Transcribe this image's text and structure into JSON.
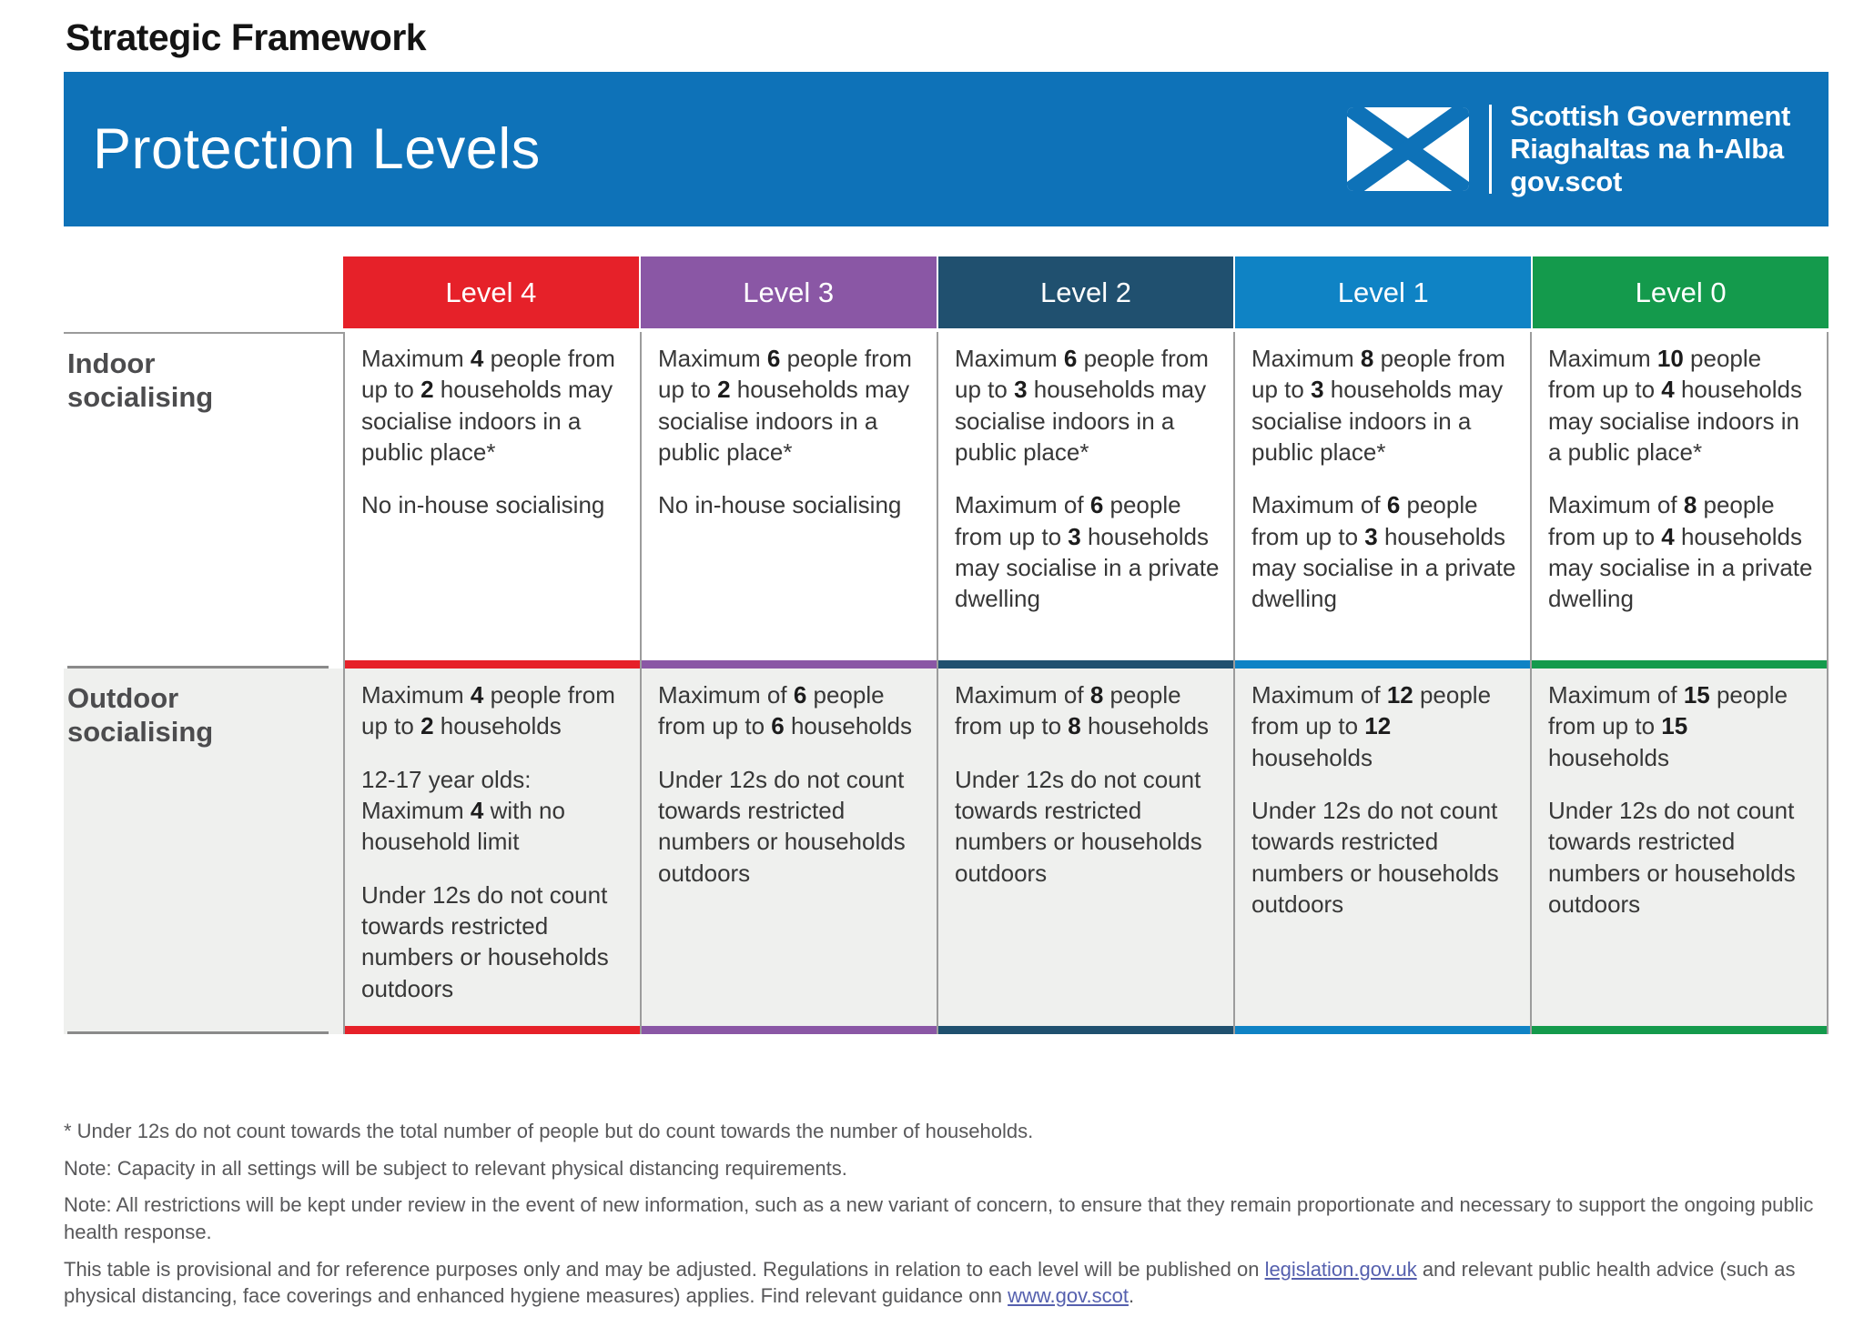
{
  "page": {
    "eyebrow": "Strategic Framework",
    "title": "Protection Levels"
  },
  "logo": {
    "line1": "Scottish Government",
    "line2": "Riaghaltas na h-Alba",
    "line3": "gov.scot",
    "flag_icon": "saltire-flag"
  },
  "colors": {
    "banner_blue": "#0e72b8",
    "level4_red": "#e62129",
    "level3_purple": "#8a57a5",
    "level2_navy": "#20506f",
    "level1_blue": "#0f83c5",
    "level0_green": "#149a4c",
    "row_alt": "#eff0ee"
  },
  "table": {
    "levels": [
      {
        "label": "Level 4",
        "color": "#e62129"
      },
      {
        "label": "Level 3",
        "color": "#8a57a5"
      },
      {
        "label": "Level 2",
        "color": "#20506f"
      },
      {
        "label": "Level 1",
        "color": "#0f83c5"
      },
      {
        "label": "Level 0",
        "color": "#149a4c"
      }
    ],
    "rows": [
      {
        "label": "Indoor socialising",
        "cells": [
          [
            "Maximum **4** people from up to **2** households may socialise indoors in a public place*",
            "No in-house socialising"
          ],
          [
            "Maximum **6** people from up to **2** households may socialise indoors in a public place*",
            "No in-house socialising"
          ],
          [
            "Maximum **6** people from up to **3** households may socialise indoors in a public place*",
            "Maximum of **6** people from up to **3** households may socialise in a private dwelling"
          ],
          [
            "Maximum **8** people from up to **3** households may socialise indoors in a public place*",
            "Maximum of **6** people from up to **3** households may socialise in a private dwelling"
          ],
          [
            "Maximum **10** people from up to **4** households may socialise indoors in a public place*",
            "Maximum of **8** people from up to **4** households may socialise in a private dwelling"
          ]
        ]
      },
      {
        "label": "Outdoor socialising",
        "cells": [
          [
            "Maximum **4** people from up to **2** households",
            "12-17 year olds: Maximum **4** with no household limit",
            "Under 12s do not count towards restricted numbers or households outdoors"
          ],
          [
            "Maximum of **6** people from up to **6** households",
            "Under 12s do not count towards restricted numbers or households outdoors"
          ],
          [
            "Maximum of **8** people from up to **8** households",
            "Under 12s do not count towards restricted numbers or households outdoors"
          ],
          [
            "Maximum of **12** people from up to **12** households",
            "Under 12s do not count towards restricted numbers or households outdoors"
          ],
          [
            "Maximum of **15** people from up to **15** households",
            "Under 12s do not count towards restricted numbers or households outdoors"
          ]
        ]
      }
    ]
  },
  "footer": {
    "asterisk_note": "* Under 12s do not count towards the total number of people but do count towards the number of households.",
    "note_capacity": "Note: Capacity in all settings will be subject to relevant physical distancing requirements.",
    "note_review": "Note: All restrictions will be kept under review in the event of new information, such as a new variant of concern, to ensure that they remain proportionate and necessary to support the ongoing public health response.",
    "provisional": {
      "part1": "This table is provisional and for reference purposes only and may be adjusted. Regulations in relation to each level will be published on ",
      "link1": "legislation.gov.uk",
      "part2": " and relevant public health advice (such as physical distancing, face coverings and enhanced hygiene measures) applies. Find relevant guidance onn ",
      "link2": "www.gov.scot",
      "part3": "."
    }
  }
}
